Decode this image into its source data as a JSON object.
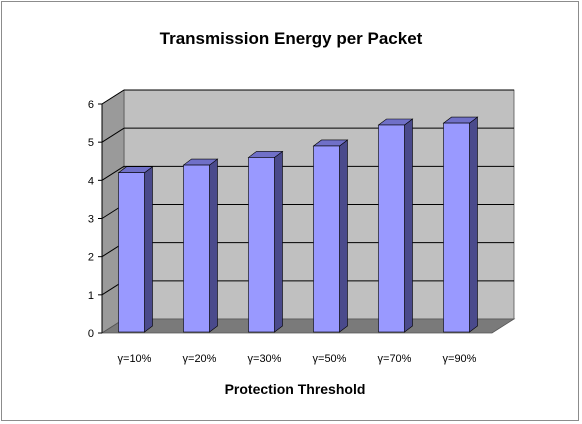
{
  "chart_data": {
    "type": "bar",
    "title": "Transmission Energy per Packet",
    "xlabel": "Protection Threshold",
    "ylabel": "",
    "categories": [
      "γ=10%",
      "γ=20%",
      "γ=30%",
      "γ=50%",
      "γ=70%",
      "γ=90%"
    ],
    "values": [
      4.2,
      4.4,
      4.6,
      4.9,
      5.45,
      5.5
    ],
    "ylim": [
      0,
      6
    ],
    "yticks": [
      "0",
      "1",
      "2",
      "3",
      "4",
      "5",
      "6"
    ],
    "grid": true,
    "legend": "none",
    "style": "3d",
    "colors": {
      "bar_front": "#9999ff",
      "bar_side": "#4a4a8c",
      "bar_top": "#7070c8",
      "back_wall": "#c0c0c0",
      "side_wall": "#9a9a9a",
      "floor": "#7a7a7a",
      "gridline": "#000000"
    }
  }
}
